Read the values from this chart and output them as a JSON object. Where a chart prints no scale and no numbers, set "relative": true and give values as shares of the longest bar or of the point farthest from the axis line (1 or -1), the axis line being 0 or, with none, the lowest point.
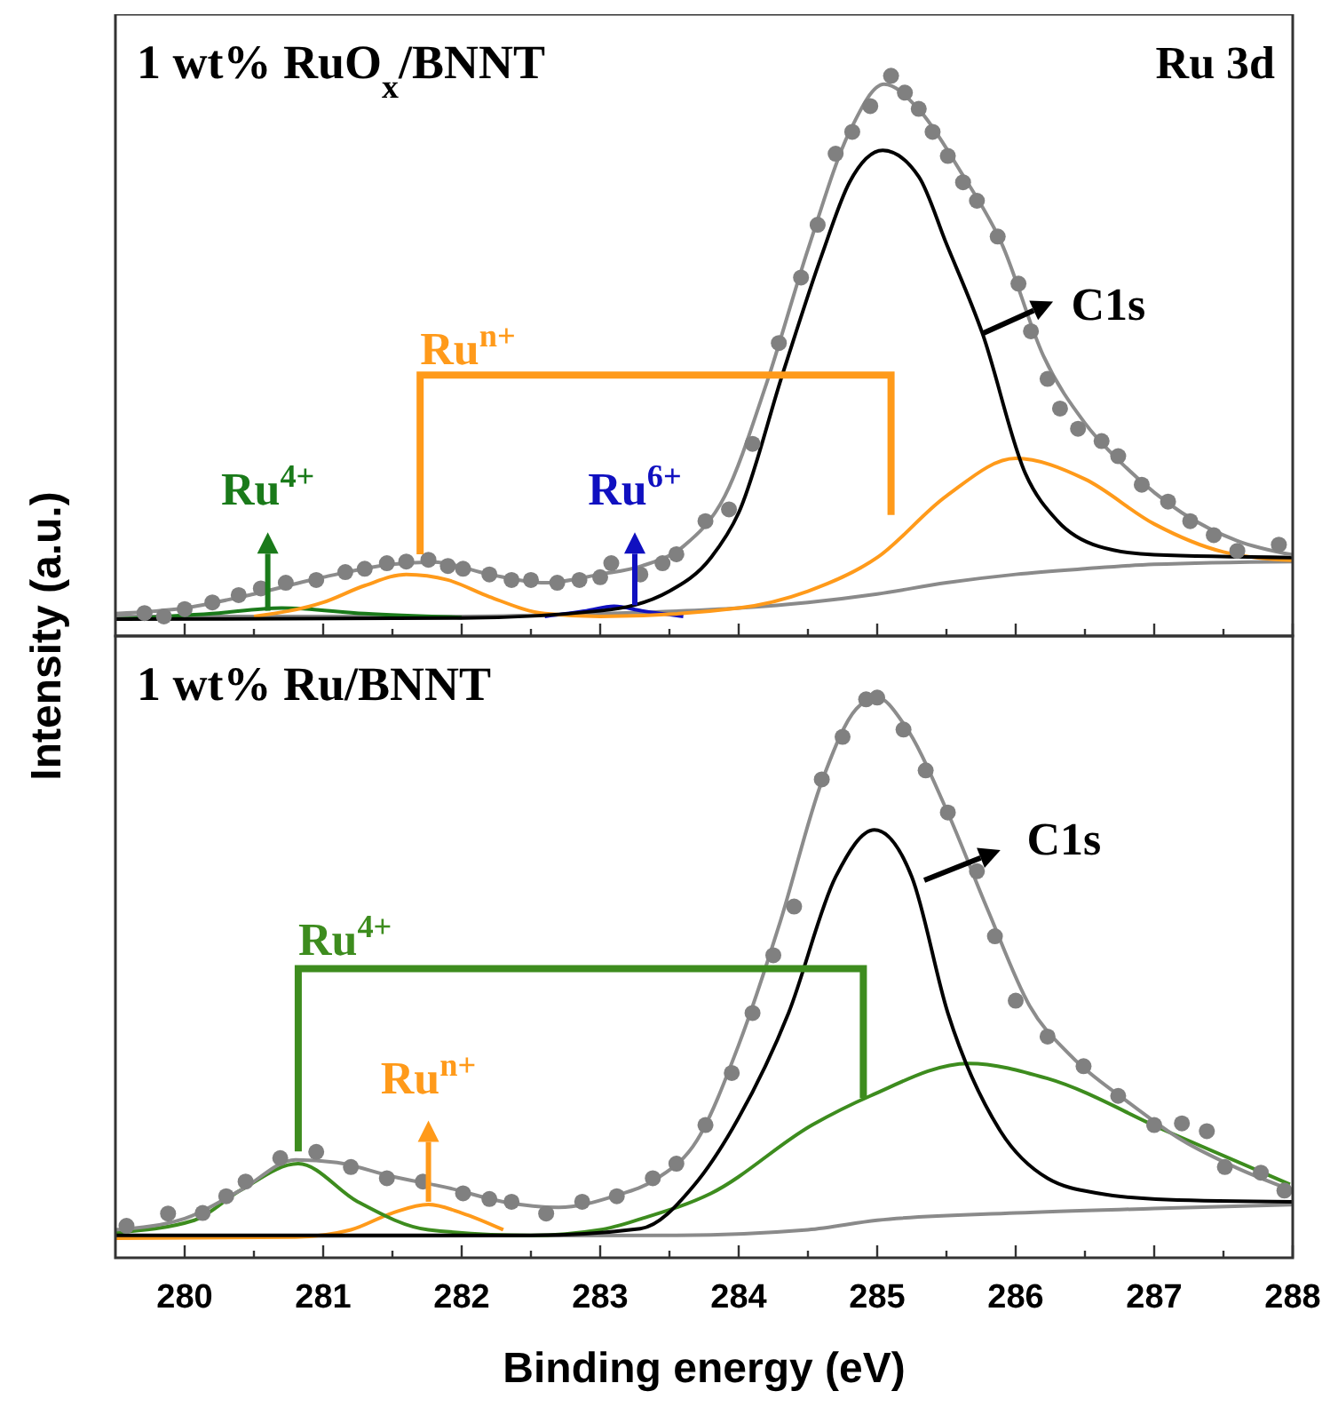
{
  "chart_data": [
    {
      "type": "line",
      "title": "1 wt% RuO$_{x}$/BNNT",
      "ylabel": "Intensity (a.u.)",
      "relative": true,
      "xlim": [
        279.5,
        288
      ],
      "xticks": [
        280,
        {
          "value": 280.5,
          "label": null
        },
        281,
        {
          "value": 281.5,
          "label": null
        },
        282,
        {
          "value": 282.5,
          "label": null
        },
        283,
        {
          "value": 283.5,
          "label": null
        },
        284,
        {
          "value": 284.5,
          "label": null
        },
        285,
        {
          "value": 285.5,
          "label": null
        },
        286,
        {
          "value": 286.5,
          "label": null
        },
        287,
        {
          "value": 287.5,
          "label": null
        },
        288
      ],
      "tick_labels": false,
      "grid": false,
      "annotations": [
        "Ru 3d",
        "Ru$^{4+}$",
        "Ru$^{n+}$",
        "Ru$^{6+}$",
        "C1s"
      ],
      "series": [
        {
          "type": "line",
          "color": "#8a8a8a",
          "x": [
            279.5,
            280.5,
            282,
            283,
            284,
            284.5,
            285,
            285.5,
            286,
            286.5,
            287,
            288
          ],
          "values": [
            0.035,
            0.035,
            0.035,
            0.04,
            0.05,
            0.06,
            0.075,
            0.095,
            0.11,
            0.12,
            0.128,
            0.133
          ]
        },
        {
          "type": "line",
          "color": "#1a7a1a",
          "x": [
            279.5,
            280.2,
            280.7,
            281.3,
            282
          ],
          "values": [
            0.03,
            0.04,
            0.05,
            0.04,
            0.033
          ]
        },
        {
          "type": "line",
          "color": "#1010c0",
          "x": [
            282.6,
            282.9,
            283.1,
            283.3,
            283.6
          ],
          "values": [
            0.035,
            0.045,
            0.053,
            0.045,
            0.035
          ]
        },
        {
          "type": "line",
          "color": "#ff9a1a",
          "x": [
            280.5,
            281,
            281.3,
            281.6,
            281.9,
            282.2,
            282.6,
            283,
            284,
            284.5,
            285,
            285.5,
            286,
            286.5,
            287,
            287.5,
            288
          ],
          "values": [
            0.035,
            0.06,
            0.09,
            0.11,
            0.1,
            0.07,
            0.04,
            0.035,
            0.05,
            0.08,
            0.14,
            0.25,
            0.317,
            0.28,
            0.2,
            0.15,
            0.135
          ]
        },
        {
          "type": "line",
          "color": "#000000",
          "x": [
            279.5,
            282,
            283,
            283.5,
            283.8,
            284,
            284.32,
            284.6,
            284.8,
            285.04,
            285.3,
            285.5,
            285.76,
            286.07,
            286.3,
            286.6,
            287,
            288
          ],
          "values": [
            0.03,
            0.032,
            0.045,
            0.08,
            0.14,
            0.22,
            0.47,
            0.68,
            0.81,
            0.867,
            0.82,
            0.7,
            0.54,
            0.29,
            0.206,
            0.16,
            0.145,
            0.14
          ]
        },
        {
          "type": "line",
          "color": "#8c8c8c",
          "x": [
            279.5,
            280,
            280.5,
            281,
            281.5,
            281.8,
            282.2,
            282.6,
            283,
            283.3,
            283.6,
            283.9,
            284.2,
            284.5,
            284.8,
            285.05,
            285.3,
            285.6,
            285.9,
            286.2,
            286.5,
            286.8,
            287.2,
            287.6,
            288
          ],
          "values": [
            0.04,
            0.05,
            0.075,
            0.105,
            0.128,
            0.132,
            0.11,
            0.095,
            0.11,
            0.125,
            0.16,
            0.25,
            0.45,
            0.69,
            0.9,
            0.985,
            0.94,
            0.83,
            0.7,
            0.5,
            0.38,
            0.3,
            0.22,
            0.17,
            0.145
          ]
        },
        {
          "type": "scatter",
          "marker": "circle",
          "color": "#808080",
          "x": [
            279.71,
            279.85,
            280.0,
            280.2,
            280.39,
            280.55,
            280.73,
            280.95,
            281.16,
            281.3,
            281.46,
            281.6,
            281.76,
            281.9,
            282.01,
            282.2,
            282.36,
            282.5,
            282.69,
            282.85,
            283.0,
            283.08,
            283.29,
            283.45,
            283.55,
            283.76,
            283.93,
            284.1,
            284.29,
            284.45,
            284.57,
            284.7,
            284.82,
            284.95,
            285.1,
            285.2,
            285.3,
            285.4,
            285.51,
            285.62,
            285.72,
            285.87,
            286.02,
            286.11,
            286.23,
            286.32,
            286.45,
            286.62,
            286.74,
            286.91,
            287.1,
            287.26,
            287.43,
            287.6,
            287.9
          ],
          "values": [
            0.041,
            0.035,
            0.048,
            0.06,
            0.073,
            0.085,
            0.095,
            0.1,
            0.114,
            0.12,
            0.13,
            0.133,
            0.136,
            0.125,
            0.12,
            0.11,
            0.1,
            0.1,
            0.095,
            0.1,
            0.105,
            0.13,
            0.11,
            0.13,
            0.146,
            0.205,
            0.226,
            0.343,
            0.523,
            0.64,
            0.734,
            0.861,
            0.9,
            0.946,
            1.0,
            0.97,
            0.941,
            0.9,
            0.857,
            0.81,
            0.777,
            0.713,
            0.629,
            0.544,
            0.459,
            0.406,
            0.37,
            0.348,
            0.321,
            0.27,
            0.24,
            0.205,
            0.18,
            0.152,
            0.163
          ]
        }
      ]
    },
    {
      "type": "line",
      "title": "1 wt% Ru/BNNT",
      "xlabel": "Binding energy (eV)",
      "relative": true,
      "xlim": [
        279.5,
        288
      ],
      "xticks": [
        280,
        {
          "value": 280.5,
          "label": null
        },
        281,
        {
          "value": 281.5,
          "label": null
        },
        282,
        {
          "value": 282.5,
          "label": null
        },
        283,
        {
          "value": 283.5,
          "label": null
        },
        284,
        {
          "value": 284.5,
          "label": null
        },
        285,
        {
          "value": 285.5,
          "label": null
        },
        286,
        {
          "value": 286.5,
          "label": null
        },
        287,
        {
          "value": 287.5,
          "label": null
        },
        288
      ],
      "tick_labels": "x",
      "grid": false,
      "annotations": [
        "Ru$^{4+}$",
        "Ru$^{n+}$",
        "C1s"
      ],
      "series": [
        {
          "type": "line",
          "color": "#8a8a8a",
          "x": [
            279.5,
            283.5,
            284.5,
            285,
            286,
            287,
            288
          ],
          "values": [
            0.038,
            0.04,
            0.05,
            0.067,
            0.08,
            0.088,
            0.095
          ]
        },
        {
          "type": "line",
          "color": "#ff9a1a",
          "x": [
            279.5,
            280.8,
            281.2,
            281.5,
            281.76,
            282,
            282.3
          ],
          "values": [
            0.035,
            0.037,
            0.05,
            0.08,
            0.095,
            0.08,
            0.05
          ]
        },
        {
          "type": "line",
          "color": "#3d8c1e",
          "x": [
            279.5,
            280.07,
            280.4,
            280.82,
            281.25,
            281.76,
            282.5,
            283,
            283.3,
            283.8,
            284.53,
            284.95,
            285.66,
            286.23,
            287.09,
            287.98
          ],
          "values": [
            0.045,
            0.067,
            0.12,
            0.168,
            0.1,
            0.05,
            0.04,
            0.05,
            0.07,
            0.115,
            0.237,
            0.289,
            0.347,
            0.32,
            0.226,
            0.131
          ]
        },
        {
          "type": "line",
          "color": "#000000",
          "x": [
            279.5,
            282.5,
            283.29,
            283.68,
            284,
            284.36,
            284.7,
            284.98,
            285.25,
            285.51,
            285.89,
            286.23,
            286.6,
            287.09,
            288
          ],
          "values": [
            0.04,
            0.04,
            0.052,
            0.13,
            0.25,
            0.437,
            0.68,
            0.764,
            0.68,
            0.437,
            0.226,
            0.142,
            0.115,
            0.104,
            0.1
          ]
        },
        {
          "type": "line",
          "color": "#8c8c8c",
          "x": [
            279.5,
            280,
            280.4,
            280.8,
            281.1,
            281.5,
            281.9,
            282.3,
            282.7,
            283.1,
            283.4,
            283.7,
            284,
            284.3,
            284.6,
            284.85,
            285,
            285.2,
            285.5,
            285.8,
            286.1,
            286.4,
            286.8,
            287.2,
            287.6,
            288
          ],
          "values": [
            0.05,
            0.07,
            0.12,
            0.175,
            0.17,
            0.145,
            0.125,
            0.1,
            0.09,
            0.11,
            0.14,
            0.21,
            0.38,
            0.6,
            0.85,
            0.98,
            1.0,
            0.95,
            0.8,
            0.62,
            0.45,
            0.36,
            0.28,
            0.21,
            0.16,
            0.12
          ]
        },
        {
          "type": "scatter",
          "marker": "circle",
          "color": "#808080",
          "x": [
            279.58,
            279.88,
            280.13,
            280.3,
            280.44,
            280.69,
            280.95,
            281.2,
            281.46,
            281.72,
            282.01,
            282.2,
            282.36,
            282.61,
            282.87,
            283.12,
            283.38,
            283.55,
            283.76,
            283.95,
            284.1,
            284.25,
            284.4,
            284.6,
            284.75,
            284.92,
            285.0,
            285.19,
            285.35,
            285.51,
            285.72,
            285.85,
            286.0,
            286.23,
            286.49,
            286.74,
            287.0,
            287.2,
            287.38,
            287.51,
            287.77,
            287.94
          ],
          "values": [
            0.057,
            0.079,
            0.08,
            0.11,
            0.136,
            0.178,
            0.189,
            0.162,
            0.142,
            0.136,
            0.115,
            0.105,
            0.1,
            0.079,
            0.1,
            0.11,
            0.142,
            0.168,
            0.237,
            0.33,
            0.437,
            0.54,
            0.627,
            0.854,
            0.93,
            0.997,
            1.0,
            0.943,
            0.87,
            0.795,
            0.69,
            0.574,
            0.459,
            0.395,
            0.342,
            0.289,
            0.237,
            0.24,
            0.226,
            0.162,
            0.152,
            0.12
          ]
        }
      ]
    }
  ]
}
